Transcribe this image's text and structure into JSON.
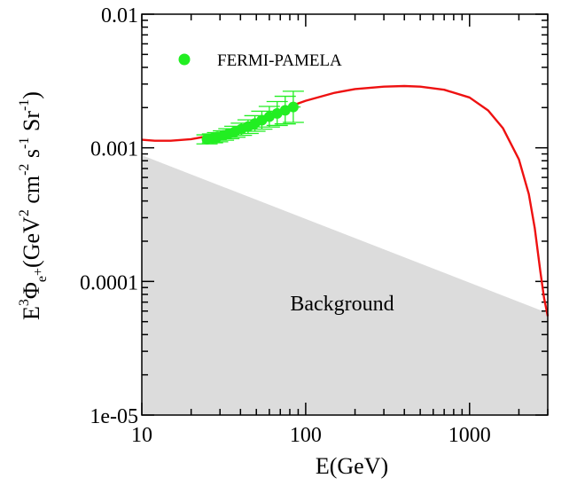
{
  "chart_data": {
    "type": "line",
    "title": "",
    "xlabel": "E(GeV)",
    "ylabel_parts": {
      "base": "E",
      "sup1": "3",
      "phi": "Φ",
      "sub": "e",
      "subsup": "+",
      "open": "(GeV",
      "sup2": "2",
      "cm": " cm",
      "sup3": "-2",
      "s": " s",
      "sup4": "-1",
      "sr": " Sr",
      "sup5": "-1",
      "close": ")"
    },
    "x_scale": "log",
    "y_scale": "log",
    "xlim": [
      10,
      3000
    ],
    "ylim": [
      1e-05,
      0.01
    ],
    "x_tick_labels": [
      {
        "value": 10,
        "label": "10"
      },
      {
        "value": 100,
        "label": "100"
      },
      {
        "value": 1000,
        "label": "1000"
      }
    ],
    "y_tick_labels": [
      {
        "value": 1e-05,
        "label": "1e-05"
      },
      {
        "value": 0.0001,
        "label": "0.0001"
      },
      {
        "value": 0.001,
        "label": "0.001"
      },
      {
        "value": 0.01,
        "label": "0.01"
      }
    ],
    "grid": false,
    "legend": {
      "placement": "top-left",
      "entries": [
        {
          "label": "FERMI-PAMELA",
          "color": "#22ee22",
          "marker": "circle"
        }
      ]
    },
    "background_region": {
      "label": "Background",
      "color": "#dcdcdc",
      "upper_edge": [
        {
          "x": 10,
          "y": 0.00088
        },
        {
          "x": 3000,
          "y": 5.8e-05
        }
      ]
    },
    "series": [
      {
        "type": "line",
        "color": "#ee1111",
        "points": [
          {
            "x": 10,
            "y": 0.00115
          },
          {
            "x": 12,
            "y": 0.00113
          },
          {
            "x": 15,
            "y": 0.00113
          },
          {
            "x": 20,
            "y": 0.00116
          },
          {
            "x": 25,
            "y": 0.00122
          },
          {
            "x": 30,
            "y": 0.0013
          },
          {
            "x": 40,
            "y": 0.00145
          },
          {
            "x": 50,
            "y": 0.00162
          },
          {
            "x": 60,
            "y": 0.00177
          },
          {
            "x": 80,
            "y": 0.00204
          },
          {
            "x": 100,
            "y": 0.00225
          },
          {
            "x": 150,
            "y": 0.00258
          },
          {
            "x": 200,
            "y": 0.00275
          },
          {
            "x": 300,
            "y": 0.00287
          },
          {
            "x": 400,
            "y": 0.0029
          },
          {
            "x": 500,
            "y": 0.00287
          },
          {
            "x": 700,
            "y": 0.00272
          },
          {
            "x": 1000,
            "y": 0.00238
          },
          {
            "x": 1300,
            "y": 0.0019
          },
          {
            "x": 1600,
            "y": 0.0014
          },
          {
            "x": 2000,
            "y": 0.00082
          },
          {
            "x": 2300,
            "y": 0.00045
          },
          {
            "x": 2500,
            "y": 0.00025
          },
          {
            "x": 2700,
            "y": 0.00012
          },
          {
            "x": 2850,
            "y": 7.5e-05
          },
          {
            "x": 3000,
            "y": 5.5e-05
          }
        ]
      },
      {
        "name": "FERMI-PAMELA",
        "type": "scatter",
        "color": "#22ee22",
        "points": [
          {
            "x": 25,
            "y": 0.00116,
            "ylow": 0.00107,
            "yhigh": 0.00125,
            "xlow": 23.5,
            "xhigh": 26.5
          },
          {
            "x": 27,
            "y": 0.00118,
            "ylow": 0.00109,
            "yhigh": 0.00127,
            "xlow": 25.5,
            "xhigh": 28.5
          },
          {
            "x": 29,
            "y": 0.00121,
            "ylow": 0.00111,
            "yhigh": 0.0013,
            "xlow": 27.5,
            "xhigh": 30.8
          },
          {
            "x": 31.5,
            "y": 0.00124,
            "ylow": 0.00114,
            "yhigh": 0.00134,
            "xlow": 29.8,
            "xhigh": 33.5
          },
          {
            "x": 34,
            "y": 0.00128,
            "ylow": 0.00117,
            "yhigh": 0.00139,
            "xlow": 32,
            "xhigh": 36.3
          },
          {
            "x": 37,
            "y": 0.00132,
            "ylow": 0.0012,
            "yhigh": 0.00145,
            "xlow": 35,
            "xhigh": 39.5
          },
          {
            "x": 40.5,
            "y": 0.00138,
            "ylow": 0.00124,
            "yhigh": 0.00153,
            "xlow": 38,
            "xhigh": 43.5
          },
          {
            "x": 44.5,
            "y": 0.00144,
            "ylow": 0.00128,
            "yhigh": 0.00162,
            "xlow": 41.5,
            "xhigh": 48
          },
          {
            "x": 49,
            "y": 0.00152,
            "ylow": 0.00133,
            "yhigh": 0.00174,
            "xlow": 45.5,
            "xhigh": 53
          },
          {
            "x": 54,
            "y": 0.00161,
            "ylow": 0.00138,
            "yhigh": 0.00188,
            "xlow": 50,
            "xhigh": 59
          },
          {
            "x": 60,
            "y": 0.00171,
            "ylow": 0.00143,
            "yhigh": 0.00204,
            "xlow": 55,
            "xhigh": 66
          },
          {
            "x": 67,
            "y": 0.00181,
            "ylow": 0.00147,
            "yhigh": 0.00222,
            "xlow": 61,
            "xhigh": 74
          },
          {
            "x": 75,
            "y": 0.00191,
            "ylow": 0.00151,
            "yhigh": 0.00243,
            "xlow": 68,
            "xhigh": 83
          },
          {
            "x": 84,
            "y": 0.00202,
            "ylow": 0.00155,
            "yhigh": 0.00265,
            "xlow": 76,
            "xhigh": 93
          }
        ]
      }
    ]
  }
}
